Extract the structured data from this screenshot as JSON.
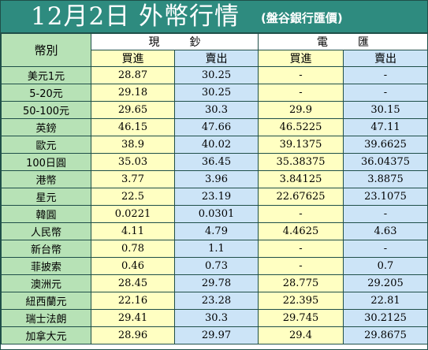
{
  "header": {
    "title": "12月2日 外幣行情",
    "subtitle": "(盤谷銀行匯價)"
  },
  "table": {
    "currency_label": "幣別",
    "group_cash": "現鈔",
    "group_wire": "電匯",
    "buy_label": "買進",
    "sell_label": "賣出",
    "rows": [
      {
        "name": "美元1元",
        "cash_buy": "28.87",
        "cash_sell": "30.25",
        "wire_buy": "-",
        "wire_sell": "-"
      },
      {
        "name": "5-20元",
        "cash_buy": "29.18",
        "cash_sell": "30.25",
        "wire_buy": "-",
        "wire_sell": "-"
      },
      {
        "name": "50-100元",
        "cash_buy": "29.65",
        "cash_sell": "30.3",
        "wire_buy": "29.9",
        "wire_sell": "30.15"
      },
      {
        "name": "英鎊",
        "cash_buy": "46.15",
        "cash_sell": "47.66",
        "wire_buy": "46.5225",
        "wire_sell": "47.11"
      },
      {
        "name": "歐元",
        "cash_buy": "38.9",
        "cash_sell": "40.02",
        "wire_buy": "39.1375",
        "wire_sell": "39.6625"
      },
      {
        "name": "100日圓",
        "cash_buy": "35.03",
        "cash_sell": "36.45",
        "wire_buy": "35.38375",
        "wire_sell": "36.04375"
      },
      {
        "name": "港幣",
        "cash_buy": "3.77",
        "cash_sell": "3.96",
        "wire_buy": "3.84125",
        "wire_sell": "3.8875"
      },
      {
        "name": "星元",
        "cash_buy": "22.5",
        "cash_sell": "23.19",
        "wire_buy": "22.67625",
        "wire_sell": "23.1075"
      },
      {
        "name": "韓圓",
        "cash_buy": "0.0221",
        "cash_sell": "0.0301",
        "wire_buy": "-",
        "wire_sell": "-"
      },
      {
        "name": "人民幣",
        "cash_buy": "4.11",
        "cash_sell": "4.79",
        "wire_buy": "4.4625",
        "wire_sell": "4.63"
      },
      {
        "name": "新台幣",
        "cash_buy": "0.78",
        "cash_sell": "1.1",
        "wire_buy": "-",
        "wire_sell": "-"
      },
      {
        "name": "菲披索",
        "cash_buy": "0.46",
        "cash_sell": "0.73",
        "wire_buy": "-",
        "wire_sell": "0.7"
      },
      {
        "name": "澳洲元",
        "cash_buy": "28.45",
        "cash_sell": "29.78",
        "wire_buy": "28.775",
        "wire_sell": "29.205"
      },
      {
        "name": "紐西蘭元",
        "cash_buy": "22.16",
        "cash_sell": "23.28",
        "wire_buy": "22.395",
        "wire_sell": "22.81"
      },
      {
        "name": "瑞士法朗",
        "cash_buy": "29.41",
        "cash_sell": "30.3",
        "wire_buy": "29.745",
        "wire_sell": "30.2125"
      },
      {
        "name": "加拿大元",
        "cash_buy": "28.96",
        "cash_sell": "29.97",
        "wire_buy": "29.4",
        "wire_sell": "29.8675"
      }
    ]
  },
  "colors": {
    "header_bg": "#2e8b7f",
    "name_col": "#b7e2b6",
    "buy_col": "#ffffc2",
    "sell_col": "#cce4f7",
    "border": "#1f4f49"
  }
}
